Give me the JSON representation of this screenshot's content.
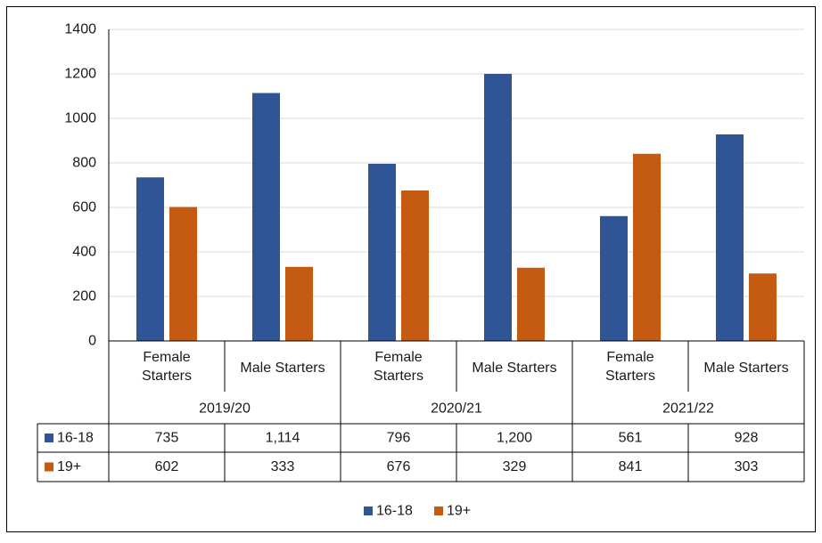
{
  "chart_data": {
    "type": "bar",
    "title": "",
    "xlabel": "",
    "ylabel": "",
    "ylim": [
      0,
      1400
    ],
    "yticks": [
      0,
      200,
      400,
      600,
      800,
      1000,
      1200,
      1400
    ],
    "grid": true,
    "legend_position": "bottom",
    "groups": [
      {
        "label": "2019/20",
        "categories": [
          "Female\nStarters",
          "Male Starters"
        ]
      },
      {
        "label": "2020/21",
        "categories": [
          "Female\nStarters",
          "Male Starters"
        ]
      },
      {
        "label": "2021/22",
        "categories": [
          "Female\nStarters",
          "Male Starters"
        ]
      }
    ],
    "series": [
      {
        "name": "16-18",
        "color": "#2f5597",
        "values": [
          735,
          1114,
          796,
          1200,
          561,
          928
        ],
        "labels": [
          "735",
          "1,114",
          "796",
          "1,200",
          "561",
          "928"
        ]
      },
      {
        "name": "19+",
        "color": "#c55a11",
        "values": [
          602,
          333,
          676,
          329,
          841,
          303
        ],
        "labels": [
          "602",
          "333",
          "676",
          "329",
          "841",
          "303"
        ]
      }
    ]
  }
}
